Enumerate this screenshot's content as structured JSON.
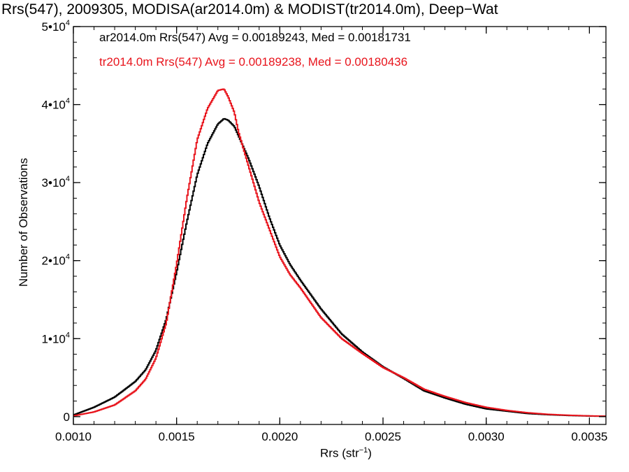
{
  "chart_data": {
    "type": "line",
    "title": "Rrs(547), 2009305, MODISA(ar2014.0m) & MODIST(tr2014.0m), Deep−Wat",
    "xlabel": "Rrs (str",
    "xlabel_sup": "−1",
    "xlabel_end": ")",
    "ylabel": "Number of Observations",
    "xlim": [
      0.001,
      0.00358
    ],
    "ylim": [
      -1000,
      50000
    ],
    "xticks": [
      {
        "value": 0.001,
        "label": "0.0010"
      },
      {
        "value": 0.0015,
        "label": "0.0015"
      },
      {
        "value": 0.002,
        "label": "0.0020"
      },
      {
        "value": 0.0025,
        "label": "0.0025"
      },
      {
        "value": 0.003,
        "label": "0.0030"
      },
      {
        "value": 0.0035,
        "label": "0.0035"
      }
    ],
    "yticks": [
      {
        "value": 0,
        "mant": "0",
        "exp": ""
      },
      {
        "value": 10000,
        "mant": "1•10",
        "exp": "4"
      },
      {
        "value": 20000,
        "mant": "2•10",
        "exp": "4"
      },
      {
        "value": 30000,
        "mant": "3•10",
        "exp": "4"
      },
      {
        "value": 40000,
        "mant": "4•10",
        "exp": "4"
      },
      {
        "value": 50000,
        "mant": "5•10",
        "exp": "4"
      }
    ],
    "grid": false,
    "legend_position": "top-left",
    "stats": [
      "ar2014.0m Rrs(547) Avg = 0.00189243, Med = 0.00181731",
      "tr2014.0m Rrs(547) Avg = 0.00189238, Med = 0.00180436"
    ],
    "series": [
      {
        "color": "#000000",
        "x": [
          0.001,
          0.0011,
          0.0012,
          0.0013,
          0.00135,
          0.0014,
          0.00145,
          0.0015,
          0.00155,
          0.0016,
          0.00165,
          0.0017,
          0.00173,
          0.00175,
          0.00178,
          0.0018,
          0.00185,
          0.0019,
          0.00195,
          0.002,
          0.00205,
          0.0021,
          0.0022,
          0.0023,
          0.0024,
          0.0025,
          0.0026,
          0.0027,
          0.0028,
          0.0029,
          0.003,
          0.0031,
          0.0032,
          0.0033,
          0.0034,
          0.0035,
          0.00358
        ],
        "y": [
          200,
          1200,
          2500,
          4500,
          6000,
          8500,
          12500,
          18500,
          25000,
          31000,
          35000,
          37500,
          38200,
          38000,
          37200,
          36000,
          33000,
          29500,
          25500,
          22000,
          19500,
          17500,
          13800,
          10600,
          8300,
          6400,
          4900,
          3300,
          2400,
          1600,
          1000,
          700,
          400,
          250,
          150,
          80,
          50
        ]
      },
      {
        "color": "#e8141c",
        "x": [
          0.001,
          0.0011,
          0.0012,
          0.0013,
          0.00135,
          0.0014,
          0.00145,
          0.0015,
          0.00155,
          0.0016,
          0.00165,
          0.0017,
          0.00173,
          0.00175,
          0.00178,
          0.0018,
          0.00185,
          0.0019,
          0.00195,
          0.002,
          0.00205,
          0.0021,
          0.0022,
          0.0023,
          0.0024,
          0.0025,
          0.0026,
          0.0027,
          0.0028,
          0.0029,
          0.003,
          0.0031,
          0.0032,
          0.0033,
          0.0034,
          0.0035,
          0.00358
        ],
        "y": [
          100,
          600,
          1500,
          3300,
          4800,
          7500,
          12000,
          19500,
          28000,
          35500,
          39500,
          41800,
          42000,
          41000,
          39000,
          36500,
          32000,
          27500,
          24000,
          20500,
          18200,
          16500,
          12700,
          10000,
          8100,
          6300,
          5000,
          3500,
          2600,
          1800,
          1200,
          800,
          500,
          300,
          180,
          100,
          60
        ]
      }
    ]
  }
}
